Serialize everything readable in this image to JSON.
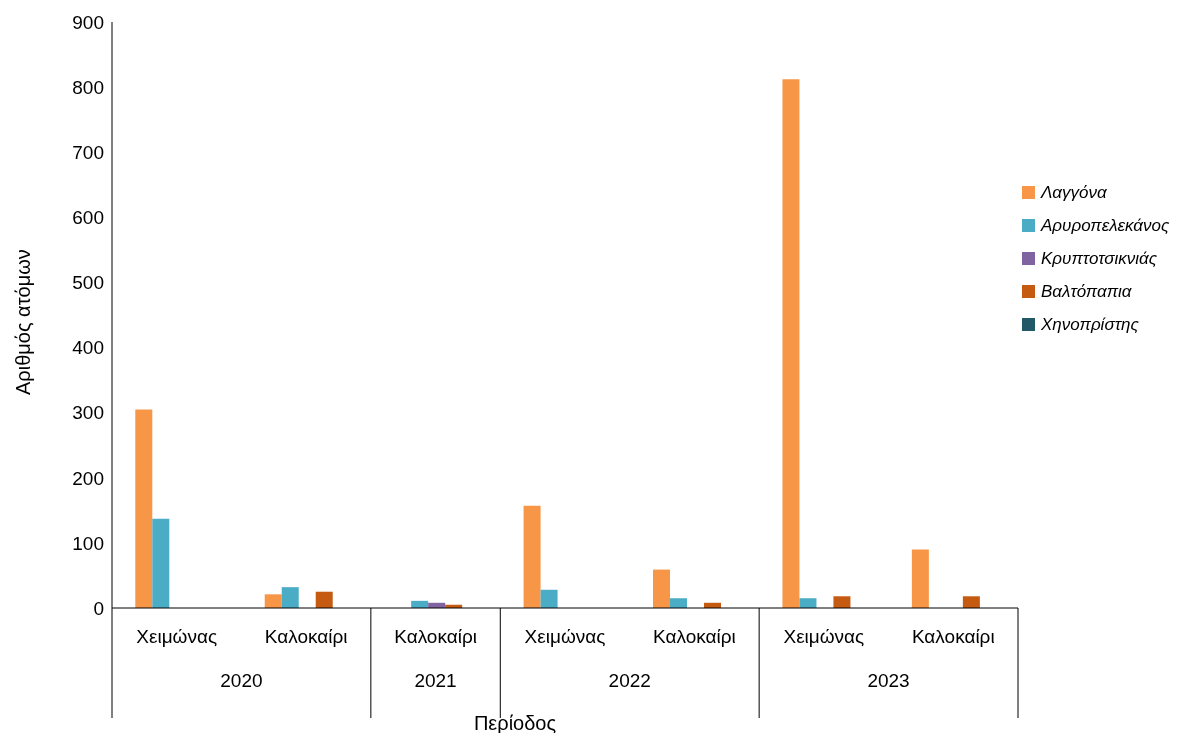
{
  "chart_data": {
    "type": "bar",
    "xlabel": "Περίοδος",
    "ylabel": "Αριθμός ατόμων",
    "categories": [
      "Χειμώνας",
      "Καλοκαίρι",
      "Καλοκαίρι",
      "Χειμώνας",
      "Καλοκαίρι",
      "Χειμώνας",
      "Καλοκαίρι"
    ],
    "annotations": [
      "2020",
      "2021",
      "2022",
      "2023"
    ],
    "series": [
      {
        "name": "Λαγγόνα",
        "color": "#f79646",
        "values": [
          305,
          21,
          0,
          157,
          59,
          812,
          90
        ]
      },
      {
        "name": "Αρυροπελεκάνος",
        "color": "#4bacc6",
        "values": [
          137,
          32,
          11,
          28,
          15,
          15,
          0
        ]
      },
      {
        "name": "Κρυπτοτσικνιάς",
        "color": "#8064a2",
        "values": [
          0,
          0,
          8,
          0,
          0,
          0,
          0
        ]
      },
      {
        "name": "Βαλτόπαπια",
        "color": "#c55a11",
        "values": [
          0,
          25,
          5,
          0,
          8,
          18,
          18
        ]
      },
      {
        "name": "Χηνοπρίστης",
        "color": "#215968",
        "values": [
          0,
          0,
          0,
          0,
          0,
          0,
          0
        ]
      }
    ],
    "ylim": [
      0,
      900
    ],
    "yticks": [
      0,
      100,
      200,
      300,
      400,
      500,
      600,
      700,
      800,
      900
    ],
    "grid": false,
    "legend": "right"
  }
}
